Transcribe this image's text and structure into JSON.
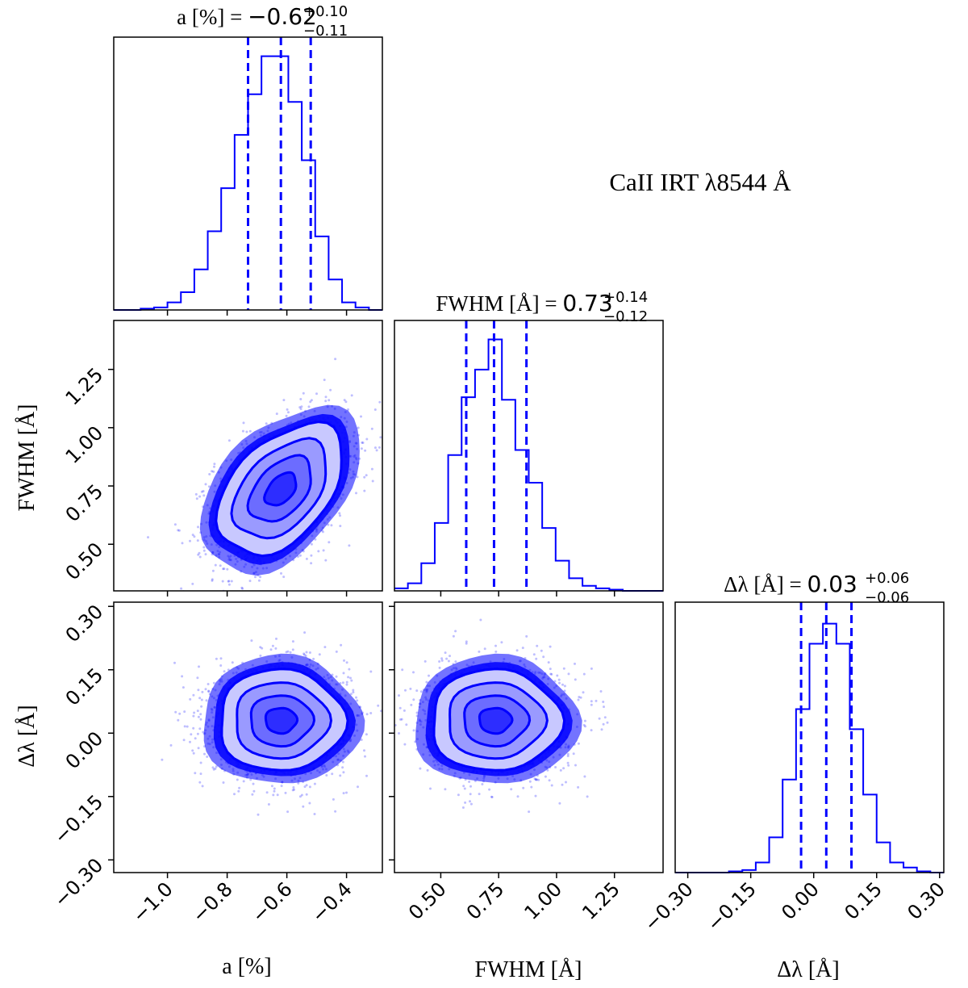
{
  "figure_label": "CaII IRT λ8544 Å",
  "colors": {
    "main": "#0000ff",
    "fill": "#3b3bff",
    "axis": "#000000"
  },
  "titles": {
    "a": {
      "lhs": "a [%] = ",
      "value": "−0.62",
      "plus": "+0.10",
      "minus": "−0.11"
    },
    "fwhm": {
      "lhs": "FWHM [Å] = ",
      "value": "0.73",
      "plus": "+0.14",
      "minus": "−0.12"
    },
    "dl": {
      "lhs": "Δλ [Å] = ",
      "value": "0.03",
      "plus": "+0.06",
      "minus": "−0.06"
    }
  },
  "axis_labels": {
    "a_x": "a [%]",
    "fwhm_x": "FWHM [Å]",
    "dl_x": "Δλ [Å]",
    "fwhm_y": "FWHM [Å]",
    "dl_y": "Δλ [Å]"
  },
  "chart_data": [
    {
      "type": "histogram",
      "panel": "a",
      "title": "a [%] = −0.62 (+0.10 / −0.11)",
      "xlim": [
        -1.18,
        -0.28
      ],
      "bin_edges": [
        -1.18,
        -1.135,
        -1.09,
        -1.045,
        -1.0,
        -0.955,
        -0.91,
        -0.865,
        -0.82,
        -0.775,
        -0.73,
        -0.685,
        -0.64,
        -0.595,
        -0.55,
        -0.505,
        -0.46,
        -0.415,
        -0.37,
        -0.325,
        -0.28
      ],
      "counts": [
        0,
        0,
        0.005,
        0.01,
        0.03,
        0.07,
        0.16,
        0.31,
        0.48,
        0.69,
        0.85,
        1.0,
        1.0,
        0.82,
        0.59,
        0.29,
        0.12,
        0.03,
        0.01,
        0
      ],
      "quantiles": [
        -0.73,
        -0.62,
        -0.52
      ],
      "xticks": [
        "−1.0",
        "−0.8",
        "−0.6",
        "−0.4"
      ],
      "xtick_values": [
        -1.0,
        -0.8,
        -0.6,
        -0.4
      ],
      "xlabel": "a [%]"
    },
    {
      "type": "histogram",
      "panel": "fwhm",
      "title": "FWHM [Å] = 0.73 (+0.14 / −0.12)",
      "xlim": [
        0.3,
        1.46
      ],
      "bin_edges": [
        0.3,
        0.358,
        0.416,
        0.474,
        0.532,
        0.59,
        0.648,
        0.706,
        0.764,
        0.822,
        0.88,
        0.938,
        0.996,
        1.054,
        1.112,
        1.17,
        1.228,
        1.286,
        1.344,
        1.402,
        1.46
      ],
      "counts": [
        0.01,
        0.03,
        0.11,
        0.27,
        0.54,
        0.77,
        0.88,
        1.0,
        0.76,
        0.56,
        0.43,
        0.25,
        0.12,
        0.05,
        0.02,
        0.01,
        0.005,
        0,
        0,
        0
      ],
      "quantiles": [
        0.61,
        0.73,
        0.87
      ],
      "xticks": [
        "0.50",
        "0.75",
        "1.00",
        "1.25"
      ],
      "xtick_values": [
        0.5,
        0.75,
        1.0,
        1.25
      ],
      "xlabel": "FWHM [Å]"
    },
    {
      "type": "histogram",
      "panel": "dl",
      "title": "Δλ [Å] = 0.03 (+0.06 / −0.06)",
      "xlim": [
        -0.33,
        0.31
      ],
      "bin_edges": [
        -0.33,
        -0.298,
        -0.266,
        -0.234,
        -0.202,
        -0.17,
        -0.138,
        -0.106,
        -0.074,
        -0.042,
        -0.01,
        0.022,
        0.054,
        0.086,
        0.118,
        0.15,
        0.182,
        0.214,
        0.246,
        0.278,
        0.31
      ],
      "counts": [
        0,
        0,
        0,
        0,
        0.005,
        0.01,
        0.04,
        0.14,
        0.37,
        0.65,
        0.91,
        0.99,
        0.91,
        0.57,
        0.31,
        0.12,
        0.04,
        0.02,
        0.005,
        0
      ],
      "quantiles": [
        -0.03,
        0.03,
        0.09
      ],
      "xticks": [
        "−0.30",
        "−0.15",
        "0.00",
        "0.15",
        "0.30"
      ],
      "xtick_values": [
        -0.3,
        -0.15,
        0.0,
        0.15,
        0.3
      ],
      "xlabel": "Δλ [Å]"
    },
    {
      "type": "scatter",
      "subtype": "2d-density-contour",
      "panel": "a-vs-fwhm",
      "x_param": "a [%]",
      "y_param": "FWHM [Å]",
      "xlim": [
        -1.18,
        -0.28
      ],
      "ylim": [
        0.3,
        1.46
      ],
      "mean": [
        -0.62,
        0.735
      ],
      "sigma": [
        0.105,
        0.14
      ],
      "correlation": 0.45,
      "contour_levels_sigma": [
        0.5,
        1.0,
        1.5,
        2.0
      ],
      "yticks": [
        "0.50",
        "0.75",
        "1.00",
        "1.25"
      ],
      "ytick_values": [
        0.5,
        0.75,
        1.0,
        1.25
      ],
      "ylabel": "FWHM [Å]"
    },
    {
      "type": "scatter",
      "subtype": "2d-density-contour",
      "panel": "a-vs-dl",
      "x_param": "a [%]",
      "y_param": "Δλ [Å]",
      "xlim": [
        -1.18,
        -0.28
      ],
      "ylim": [
        -0.33,
        0.31
      ],
      "mean": [
        -0.62,
        0.03
      ],
      "sigma": [
        0.105,
        0.06
      ],
      "correlation": 0.0,
      "contour_levels_sigma": [
        0.5,
        1.0,
        1.5,
        2.0
      ],
      "yticks": [
        "−0.30",
        "−0.15",
        "0.00",
        "0.15",
        "0.30"
      ],
      "ytick_values": [
        -0.3,
        -0.15,
        0.0,
        0.15,
        0.3
      ],
      "ylabel": "Δλ [Å]"
    },
    {
      "type": "scatter",
      "subtype": "2d-density-contour",
      "panel": "fwhm-vs-dl",
      "x_param": "FWHM [Å]",
      "y_param": "Δλ [Å]",
      "xlim": [
        0.3,
        1.46
      ],
      "ylim": [
        -0.33,
        0.31
      ],
      "mean": [
        0.735,
        0.03
      ],
      "sigma": [
        0.14,
        0.06
      ],
      "correlation": 0.0,
      "contour_levels_sigma": [
        0.5,
        1.0,
        1.5,
        2.0
      ]
    }
  ]
}
